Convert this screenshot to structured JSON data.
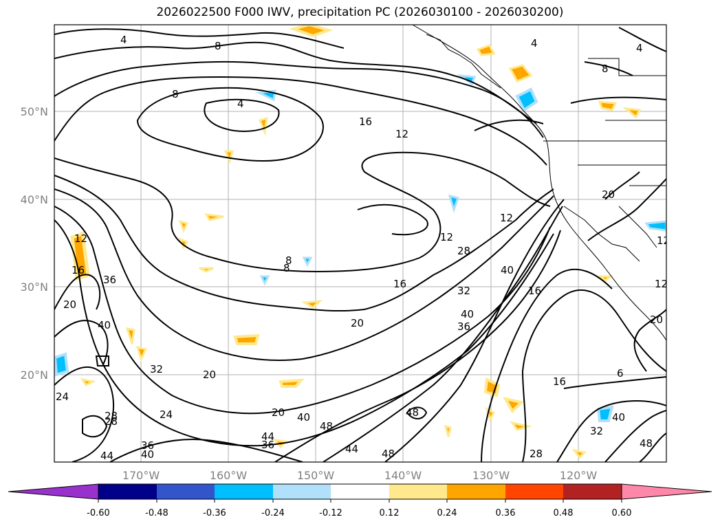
{
  "title": "2026022500 F000 IWV, precipitation PC (2026030100 - 2026030200)",
  "lon_ticks": [
    "170°W",
    "160°W",
    "150°W",
    "140°W",
    "130°W",
    "120°W"
  ],
  "lat_ticks": [
    "50°N",
    "40°N",
    "30°N",
    "20°N"
  ],
  "colorbar": {
    "colors": [
      "#9932cc",
      "#00008b",
      "#3355cc",
      "#00bfff",
      "#b0e0fa",
      "#ffffff",
      "#ffe98c",
      "#ffa500",
      "#ff4500",
      "#b22222",
      "#ff88aa"
    ],
    "labels": [
      "-0.60",
      "-0.48",
      "-0.36",
      "-0.24",
      "-0.12",
      "0.12",
      "0.24",
      "0.36",
      "0.48",
      "0.60"
    ]
  },
  "contour_labels": [
    "4",
    "8",
    "8",
    "4",
    "4",
    "4",
    "8",
    "16",
    "12",
    "12",
    "12",
    "8",
    "16",
    "20",
    "28",
    "32",
    "40",
    "36",
    "40",
    "16",
    "20",
    "24",
    "28",
    "32",
    "36",
    "40",
    "44",
    "48",
    "48",
    "44",
    "48",
    "36",
    "40",
    "12",
    "16",
    "20",
    "20",
    "8",
    "12",
    "16",
    "6",
    "28",
    "32",
    "40",
    "48",
    "12",
    "36",
    "40",
    "44",
    "28",
    "20",
    "24",
    "20"
  ],
  "colors": {
    "contour": "#000000",
    "grid": "#b0b0b0",
    "coast": "#000000"
  }
}
